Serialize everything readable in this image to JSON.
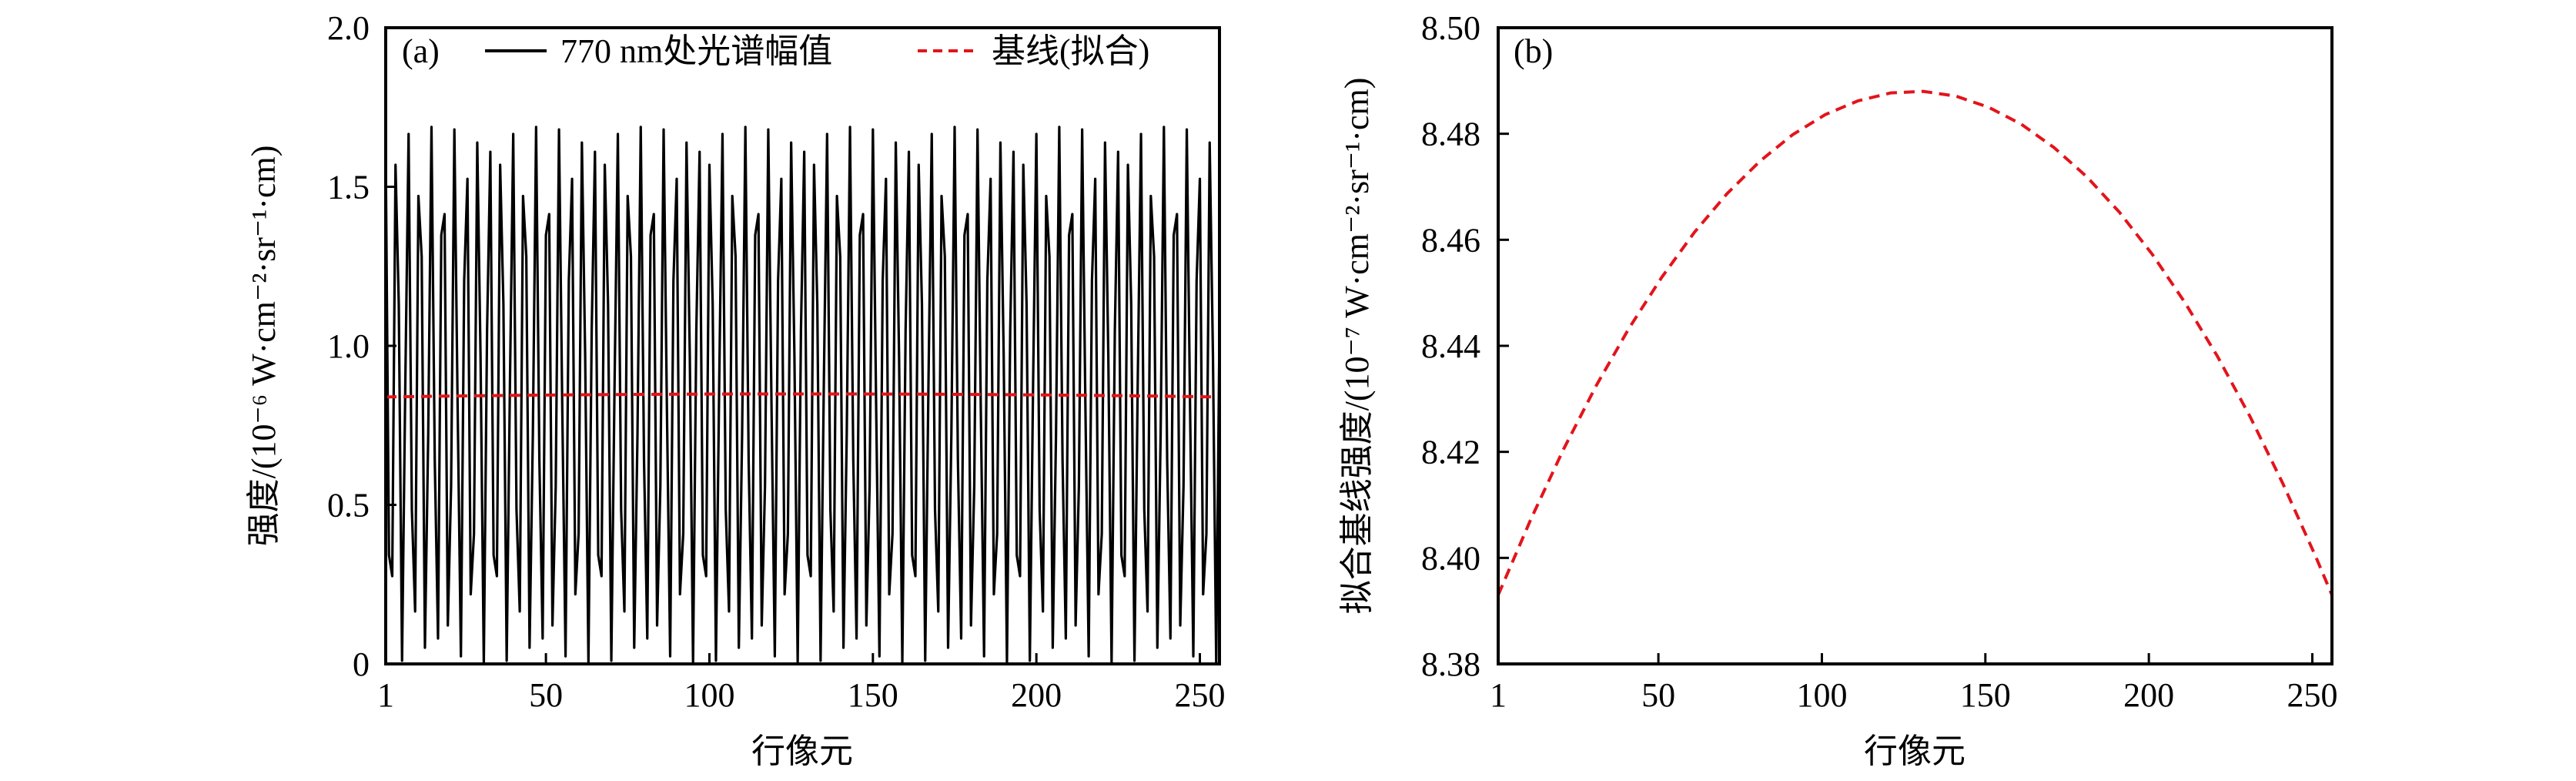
{
  "chart_data": [
    {
      "panel": "(a)",
      "type": "line",
      "xlabel": "行像元",
      "ylabel": "强度/(10⁻⁶ W·cm⁻²·sr⁻¹·cm)",
      "xlim": [
        1,
        256
      ],
      "ylim": [
        0,
        2.0
      ],
      "xticks": [
        1,
        50,
        100,
        150,
        200,
        250
      ],
      "xtick_labels": [
        "1",
        "50",
        "100",
        "150",
        "200",
        "250"
      ],
      "yticks": [
        0,
        0.5,
        1.0,
        1.5,
        2.0
      ],
      "ytick_labels": [
        "0",
        "0.5",
        "1.0",
        "1.5",
        "2.0"
      ],
      "grid": false,
      "legend_position": "top",
      "series": [
        {
          "name": "770 nm处光谱幅值",
          "color": "#000000",
          "style": "solid",
          "x_start": 1,
          "x_step": 1,
          "values": [
            1.61,
            0.342,
            0.276,
            1.569,
            1.131,
            0.01,
            0.885,
            1.666,
            0.485,
            0.165,
            1.471,
            1.281,
            0.051,
            0.72,
            1.688,
            0.641,
            0.08,
            1.348,
            1.414,
            0.121,
            0.559,
            1.68,
            0.805,
            0.024,
            1.205,
            1.525,
            0.219,
            0.409,
            1.639,
            0.97,
            0.002,
            1.049,
            1.61,
            0.342,
            0.276,
            1.569,
            1.131,
            0.01,
            0.885,
            1.666,
            0.485,
            0.165,
            1.471,
            1.281,
            0.051,
            0.72,
            1.688,
            0.641,
            0.08,
            1.348,
            1.414,
            0.121,
            0.559,
            1.68,
            0.805,
            0.024,
            1.205,
            1.525,
            0.219,
            0.409,
            1.639,
            0.97,
            0.002,
            1.049,
            1.61,
            0.342,
            0.276,
            1.569,
            1.131,
            0.01,
            0.885,
            1.666,
            0.485,
            0.165,
            1.471,
            1.281,
            0.051,
            0.72,
            1.688,
            0.641,
            0.08,
            1.348,
            1.414,
            0.121,
            0.559,
            1.68,
            0.805,
            0.024,
            1.205,
            1.525,
            0.219,
            0.409,
            1.639,
            0.97,
            0.002,
            1.049,
            1.61,
            0.342,
            0.276,
            1.569,
            1.131,
            0.01,
            0.885,
            1.666,
            0.485,
            0.165,
            1.471,
            1.281,
            0.051,
            0.72,
            1.688,
            0.641,
            0.08,
            1.348,
            1.414,
            0.121,
            0.559,
            1.68,
            0.805,
            0.024,
            1.205,
            1.525,
            0.219,
            0.409,
            1.639,
            0.97,
            0.002,
            1.049,
            1.61,
            0.342,
            0.276,
            1.569,
            1.131,
            0.01,
            0.885,
            1.666,
            0.485,
            0.165,
            1.471,
            1.281,
            0.051,
            0.72,
            1.688,
            0.641,
            0.08,
            1.348,
            1.414,
            0.121,
            0.559,
            1.68,
            0.805,
            0.024,
            1.205,
            1.525,
            0.219,
            0.409,
            1.639,
            0.97,
            0.002,
            1.049,
            1.61,
            0.342,
            0.276,
            1.569,
            1.131,
            0.01,
            0.885,
            1.666,
            0.485,
            0.165,
            1.471,
            1.281,
            0.051,
            0.72,
            1.688,
            0.641,
            0.08,
            1.348,
            1.414,
            0.121,
            0.559,
            1.68,
            0.805,
            0.024,
            1.205,
            1.525,
            0.219,
            0.409,
            1.639,
            0.97,
            0.002,
            1.049,
            1.61,
            0.342,
            0.276,
            1.569,
            1.131,
            0.01,
            0.885,
            1.666,
            0.485,
            0.165,
            1.471,
            1.281,
            0.051,
            0.72,
            1.688,
            0.641,
            0.08,
            1.348,
            1.414,
            0.121,
            0.559,
            1.68,
            0.805,
            0.024,
            1.205,
            1.525,
            0.219,
            0.409,
            1.639,
            0.97,
            0.002,
            1.049,
            1.61,
            0.342,
            0.276,
            1.569,
            1.131,
            0.01,
            0.885,
            1.666,
            0.485,
            0.165,
            1.471,
            1.281,
            0.051,
            0.72,
            1.688,
            0.641,
            0.08,
            1.348,
            1.414,
            0.121,
            0.559,
            1.68,
            0.805,
            0.024,
            1.205,
            1.525,
            0.219,
            0.409,
            1.639,
            0.97,
            0.002,
            1.049
          ]
        },
        {
          "name": "基线(拟合)",
          "color": "#e3141b",
          "style": "dashed",
          "x": [
            1,
            11,
            21,
            31,
            41,
            51,
            61,
            71,
            81,
            91,
            101,
            111,
            121,
            131,
            141,
            151,
            161,
            171,
            181,
            191,
            201,
            211,
            221,
            231,
            241,
            251,
            256
          ],
          "values": [
            0.8393,
            0.8407,
            0.8421,
            0.8433,
            0.8443,
            0.8453,
            0.8461,
            0.8469,
            0.8475,
            0.848,
            0.8484,
            0.8486,
            0.8488,
            0.8488,
            0.8487,
            0.8485,
            0.8482,
            0.8477,
            0.8472,
            0.8465,
            0.8457,
            0.8448,
            0.8438,
            0.8427,
            0.8414,
            0.84,
            0.8393
          ]
        }
      ]
    },
    {
      "panel": "(b)",
      "type": "line",
      "xlabel": "行像元",
      "ylabel": "拟合基线强度/(10⁻⁷ W·cm⁻²·sr⁻¹·cm)",
      "xlim": [
        1,
        256
      ],
      "ylim": [
        8.38,
        8.5
      ],
      "xticks": [
        1,
        50,
        100,
        150,
        200,
        250
      ],
      "xtick_labels": [
        "1",
        "50",
        "100",
        "150",
        "200",
        "250"
      ],
      "yticks": [
        8.38,
        8.4,
        8.42,
        8.44,
        8.46,
        8.48,
        8.5
      ],
      "ytick_labels": [
        "8.38",
        "8.40",
        "8.42",
        "8.44",
        "8.46",
        "8.48",
        "8.50"
      ],
      "grid": false,
      "series": [
        {
          "name": "拟合基线",
          "color": "#e3141b",
          "style": "dashed",
          "x": [
            1,
            11,
            21,
            31,
            41,
            51,
            61,
            71,
            81,
            91,
            101,
            111,
            121,
            131,
            141,
            151,
            161,
            171,
            181,
            191,
            201,
            211,
            221,
            231,
            241,
            251,
            256
          ],
          "values": [
            8.393,
            8.4073,
            8.4205,
            8.4325,
            8.4433,
            8.4529,
            8.4614,
            8.4687,
            8.4748,
            8.4798,
            8.4836,
            8.4862,
            8.4877,
            8.488,
            8.4871,
            8.485,
            8.4818,
            8.4774,
            8.4719,
            8.4652,
            8.4573,
            8.4482,
            8.438,
            8.4266,
            8.414,
            8.4003,
            8.393
          ]
        }
      ]
    }
  ]
}
